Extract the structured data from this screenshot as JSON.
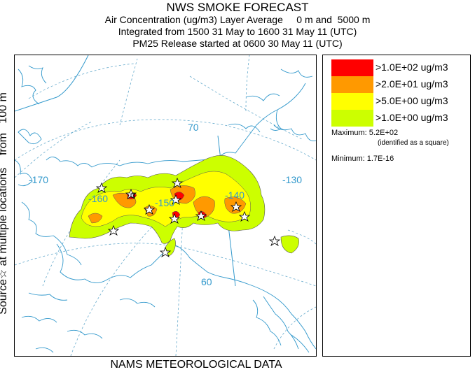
{
  "header": {
    "title": "NWS SMOKE FORECAST",
    "line1": "Air Concentration (ug/m3) Layer Average     0 m and  5000 m",
    "line2": "Integrated from 1500 31 May to 1600 31 May 11 (UTC)",
    "line3": "PM25 Release started at 0600 30 May 11 (UTC)"
  },
  "side_label": "Source☆ at multiple locations    from   100 m",
  "footer": "NAMS METEOROLOGICAL DATA",
  "map": {
    "longitude_labels": [
      "-170",
      "-160",
      "-150",
      "-140",
      "-130"
    ],
    "latitude_labels": [
      "70",
      "60"
    ]
  },
  "legend": {
    "entries": [
      {
        "label": ">1.0E+02 ug/m3",
        "color": "#ff0000"
      },
      {
        "label": ">2.0E+01 ug/m3",
        "color": "#ff9900"
      },
      {
        "label": ">5.0E+00 ug/m3",
        "color": "#ffff00"
      },
      {
        "label": ">1.0E+00 ug/m3",
        "color": "#ccff00"
      }
    ],
    "maximum_label": "Maximum: 5.2E+02",
    "maximum_note": "(identified as a square)",
    "minimum_label": "Minimum: 1.7E-16"
  },
  "colors": {
    "coast": "#3399cc",
    "graticule": "#66aacc",
    "plume_outline": "#555555"
  }
}
